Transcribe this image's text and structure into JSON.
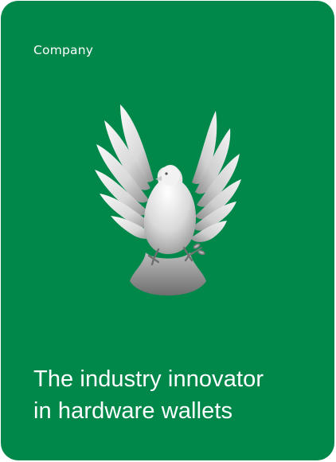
{
  "card": {
    "eyebrow": "Company",
    "headline_line_1": "The industry innovator",
    "headline_line_2": "in hardware wallets",
    "image_subject": "dove-icon",
    "colors": {
      "background": "#00874a",
      "text": "#ffffff"
    }
  }
}
